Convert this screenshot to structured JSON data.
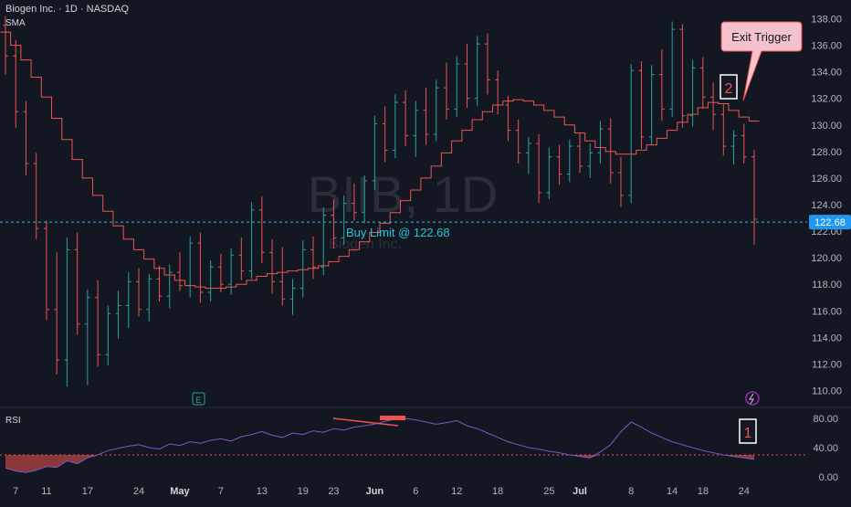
{
  "header": {
    "symbol_line": "Biogen Inc. · 1D · NASDAQ",
    "indicator": "SMA"
  },
  "watermark": {
    "main": "BIIB, 1D",
    "sub": "Biogen Inc."
  },
  "annotations": {
    "buy_limit": "Buy Limit @ 122.68",
    "exit_trigger": "Exit Trigger",
    "marker_1": "1",
    "marker_2": "2",
    "earnings_badge": "E"
  },
  "rsi": {
    "label": "RSI",
    "ticks": [
      "80.00",
      "40.00",
      "0.00"
    ]
  },
  "colors": {
    "background": "#131722",
    "up": "#26a69a",
    "down": "#ef5350",
    "sma": "#ef5350",
    "rsi_line": "#7e57c2",
    "buy_limit": "#26c6da",
    "callout_fill": "#f8bbd0"
  },
  "chart_data": {
    "type": "candlestick",
    "title": "",
    "y_ticks": [
      "138.00",
      "136.00",
      "134.00",
      "132.00",
      "130.00",
      "128.00",
      "126.00",
      "124.00",
      "122.00",
      "120.00",
      "118.00",
      "116.00",
      "114.00",
      "112.00",
      "110.00"
    ],
    "ylim": [
      109,
      139
    ],
    "x_ticks": [
      "7",
      "11",
      "17",
      "24",
      "May",
      "7",
      "13",
      "19",
      "23",
      "Jun",
      "6",
      "12",
      "18",
      "25",
      "Jul",
      "8",
      "14",
      "18",
      "24"
    ],
    "horizontal_line": {
      "label": "Buy Limit @ 122.68",
      "value": 122.68,
      "price_tag": "122.68"
    },
    "series": [
      {
        "name": "Price",
        "ohlc": [
          [
            137.5,
            138.2,
            133.8,
            135.2
          ],
          [
            135.2,
            136.4,
            129.8,
            131.0
          ],
          [
            131.0,
            131.8,
            126.2,
            127.1
          ],
          [
            127.1,
            127.9,
            121.4,
            122.2
          ],
          [
            122.2,
            122.8,
            115.3,
            116.1
          ],
          [
            116.1,
            120.4,
            111.2,
            112.3
          ],
          [
            112.3,
            121.5,
            110.3,
            120.6
          ],
          [
            120.6,
            121.9,
            114.2,
            115.0
          ],
          [
            115.0,
            117.6,
            110.4,
            117.0
          ],
          [
            117.0,
            118.3,
            111.8,
            112.7
          ],
          [
            112.7,
            116.4,
            111.9,
            115.8
          ],
          [
            115.8,
            117.5,
            113.9,
            116.4
          ],
          [
            116.4,
            118.9,
            114.7,
            118.2
          ],
          [
            118.2,
            119.2,
            115.6,
            116.1
          ],
          [
            116.1,
            118.8,
            115.2,
            118.4
          ],
          [
            118.4,
            119.4,
            116.7,
            117.1
          ],
          [
            117.1,
            119.5,
            116.2,
            118.9
          ],
          [
            118.9,
            120.4,
            117.5,
            117.9
          ],
          [
            117.9,
            121.6,
            117.0,
            121.1
          ],
          [
            121.1,
            121.9,
            116.6,
            117.4
          ],
          [
            117.4,
            119.8,
            116.7,
            119.3
          ],
          [
            119.3,
            120.3,
            117.4,
            118.0
          ],
          [
            118.0,
            120.7,
            117.2,
            120.2
          ],
          [
            120.2,
            121.5,
            118.3,
            119.0
          ],
          [
            119.0,
            124.2,
            118.4,
            123.6
          ],
          [
            123.6,
            124.6,
            119.6,
            120.4
          ],
          [
            120.4,
            121.4,
            117.3,
            118.2
          ],
          [
            118.2,
            120.8,
            116.4,
            116.9
          ],
          [
            116.9,
            118.4,
            115.7,
            117.7
          ],
          [
            117.7,
            121.3,
            117.0,
            120.6
          ],
          [
            120.6,
            121.6,
            118.4,
            119.3
          ],
          [
            119.3,
            123.8,
            118.7,
            123.2
          ],
          [
            123.2,
            124.4,
            120.7,
            121.5
          ],
          [
            121.5,
            124.7,
            121.0,
            124.1
          ],
          [
            124.1,
            125.6,
            122.8,
            123.4
          ],
          [
            123.4,
            126.2,
            122.6,
            125.8
          ],
          [
            125.8,
            130.7,
            125.1,
            130.1
          ],
          [
            130.1,
            131.4,
            127.2,
            128.1
          ],
          [
            128.1,
            132.3,
            127.5,
            131.7
          ],
          [
            131.7,
            132.6,
            128.4,
            129.2
          ],
          [
            129.2,
            131.8,
            127.6,
            131.1
          ],
          [
            131.1,
            132.8,
            128.5,
            129.3
          ],
          [
            129.3,
            133.4,
            128.8,
            132.8
          ],
          [
            132.8,
            134.7,
            130.4,
            131.2
          ],
          [
            131.2,
            135.2,
            130.6,
            134.6
          ],
          [
            134.6,
            136.1,
            131.3,
            132.0
          ],
          [
            132.0,
            136.7,
            131.4,
            136.1
          ],
          [
            136.1,
            136.9,
            132.3,
            133.4
          ],
          [
            133.4,
            134.1,
            130.8,
            131.5
          ],
          [
            131.5,
            132.2,
            128.8,
            129.6
          ],
          [
            129.6,
            130.4,
            127.1,
            127.9
          ],
          [
            127.9,
            129.1,
            126.3,
            128.6
          ],
          [
            128.6,
            129.3,
            124.1,
            124.9
          ],
          [
            124.9,
            128.3,
            124.4,
            127.6
          ],
          [
            127.6,
            128.5,
            125.5,
            126.3
          ],
          [
            126.3,
            128.9,
            125.7,
            128.4
          ],
          [
            128.4,
            129.4,
            126.4,
            126.9
          ],
          [
            126.9,
            128.6,
            126.0,
            127.9
          ],
          [
            127.9,
            130.3,
            127.1,
            129.7
          ],
          [
            129.7,
            130.5,
            125.6,
            126.4
          ],
          [
            126.4,
            127.6,
            123.8,
            124.7
          ],
          [
            124.7,
            134.6,
            124.1,
            134.1
          ],
          [
            134.1,
            134.8,
            128.2,
            129.1
          ],
          [
            129.1,
            134.5,
            128.5,
            133.8
          ],
          [
            133.8,
            135.7,
            130.3,
            131.2
          ],
          [
            131.2,
            137.8,
            130.6,
            137.2
          ],
          [
            137.2,
            137.6,
            129.8,
            130.7
          ],
          [
            130.7,
            134.9,
            129.9,
            134.3
          ],
          [
            134.3,
            135.1,
            131.2,
            132.1
          ],
          [
            132.1,
            133.2,
            129.6,
            130.8
          ],
          [
            130.8,
            131.6,
            127.7,
            128.4
          ],
          [
            128.4,
            129.6,
            127.0,
            129.2
          ],
          [
            129.2,
            130.1,
            127.1,
            127.6
          ],
          [
            127.6,
            128.1,
            121.0,
            122.9
          ]
        ]
      },
      {
        "name": "SMA",
        "values": [
          137.0,
          136.0,
          134.9,
          133.6,
          132.1,
          130.5,
          128.9,
          127.4,
          126.0,
          124.7,
          123.5,
          122.4,
          121.4,
          120.6,
          119.9,
          119.2,
          118.7,
          118.3,
          117.9,
          117.8,
          117.7,
          117.7,
          117.8,
          118.0,
          118.3,
          118.6,
          118.8,
          118.9,
          119.0,
          119.1,
          119.2,
          119.4,
          119.7,
          120.1,
          120.6,
          121.2,
          121.9,
          122.6,
          123.4,
          124.3,
          125.1,
          126.0,
          126.9,
          127.9,
          128.8,
          129.6,
          130.4,
          131.0,
          131.5,
          131.8,
          131.9,
          131.8,
          131.5,
          131.1,
          130.6,
          130.0,
          129.4,
          128.8,
          128.3,
          128.0,
          127.8,
          127.8,
          128.1,
          128.5,
          129.0,
          129.6,
          130.2,
          130.8,
          131.3,
          131.7,
          131.6,
          131.1,
          130.6,
          130.3
        ]
      },
      {
        "name": "RSI",
        "values": [
          12,
          8,
          6,
          9,
          14,
          13,
          22,
          18,
          26,
          30,
          36,
          39,
          42,
          44,
          40,
          38,
          45,
          43,
          48,
          46,
          50,
          52,
          49,
          55,
          58,
          62,
          57,
          54,
          60,
          58,
          63,
          61,
          66,
          64,
          68,
          70,
          72,
          76,
          79,
          80,
          78,
          75,
          72,
          74,
          77,
          70,
          66,
          60,
          54,
          48,
          44,
          40,
          38,
          35,
          33,
          30,
          28,
          26,
          34,
          44,
          62,
          75,
          68,
          60,
          54,
          48,
          44,
          40,
          36,
          33,
          30,
          28,
          26,
          24
        ]
      }
    ],
    "rsi_ylim": [
      0,
      90
    ],
    "rsi_ticks": [
      "80.00",
      "40.00",
      "0.00"
    ],
    "rsi_oversold_line": 30
  }
}
